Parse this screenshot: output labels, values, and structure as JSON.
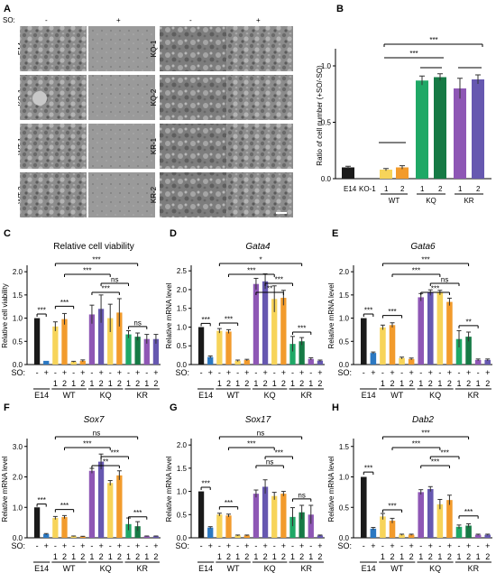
{
  "panel_letters": [
    "A",
    "B",
    "C",
    "D",
    "E",
    "F",
    "G",
    "H"
  ],
  "panel_a": {
    "so_label": "SO:",
    "minus": "-",
    "plus": "+",
    "left_rows": [
      "E14",
      "KO-1",
      "WT-1",
      "WT-2"
    ],
    "right_rows": [
      "KQ-1",
      "KQ-2",
      "KR-1",
      "KR-2"
    ]
  },
  "colors": {
    "black": "#1a1a1a",
    "blue": "#2b78c2",
    "yellow": "#f7d45a",
    "orange": "#f29b2c",
    "green1": "#1fa866",
    "green2": "#167a45",
    "purple1": "#8e57b5",
    "purple2": "#6658b0"
  },
  "chart_data": [
    {
      "panel": "B",
      "type": "bar",
      "ylabel": "Ratio of  cell number (+SO/-SO)",
      "yticks": [
        0.0,
        0.5,
        1.0
      ],
      "ylim": [
        0,
        1.12
      ],
      "categories": [
        "E14",
        "KO-1",
        "1",
        "2",
        "1",
        "2",
        "1",
        "2"
      ],
      "groups": [
        "WT",
        "KQ",
        "KR"
      ],
      "values": [
        0.1,
        0.0,
        0.08,
        0.1,
        0.87,
        0.9,
        0.8,
        0.88
      ],
      "errors": [
        0.01,
        0.0,
        0.01,
        0.015,
        0.04,
        0.03,
        0.09,
        0.04
      ],
      "significance": [
        "***",
        "***"
      ]
    },
    {
      "panel": "C",
      "type": "bar",
      "title": "Relative cell viability",
      "title_italic": false,
      "ylabel": "Relative cell viability",
      "yticks": [
        0.0,
        0.5,
        1.0,
        1.5,
        2.0
      ],
      "ylim": [
        0,
        2.1
      ],
      "values": [
        1.0,
        0.08,
        0.82,
        0.98,
        0.06,
        0.08,
        1.08,
        1.2,
        1.0,
        1.12,
        0.65,
        0.6,
        0.55,
        0.55
      ],
      "errors": [
        0.0,
        0.0,
        0.1,
        0.12,
        0.01,
        0.02,
        0.2,
        0.3,
        0.3,
        0.3,
        0.08,
        0.08,
        0.1,
        0.1
      ],
      "significance": [
        "***",
        "***",
        "***",
        "***",
        "ns",
        "***",
        "ns"
      ]
    },
    {
      "panel": "D",
      "type": "bar",
      "title": "Gata4",
      "title_italic": true,
      "ylabel": "Relative mRNA level",
      "yticks": [
        0.0,
        0.5,
        1.0,
        1.5,
        2.0,
        2.5
      ],
      "ylim": [
        0,
        2.6
      ],
      "values": [
        1.0,
        0.2,
        0.9,
        0.88,
        0.1,
        0.12,
        2.15,
        2.22,
        1.75,
        1.78,
        0.55,
        0.62,
        0.15,
        0.1
      ],
      "errors": [
        0.0,
        0.03,
        0.06,
        0.05,
        0.02,
        0.02,
        0.15,
        0.2,
        0.35,
        0.2,
        0.2,
        0.1,
        0.03,
        0.02
      ],
      "significance": [
        "***",
        "***",
        "*",
        "***",
        "***",
        "**",
        "***"
      ]
    },
    {
      "panel": "E",
      "type": "bar",
      "title": "Gata6",
      "title_italic": true,
      "ylabel": "Relative mRNA level",
      "yticks": [
        0.0,
        0.5,
        1.0,
        1.5,
        2.0
      ],
      "ylim": [
        0,
        2.1
      ],
      "values": [
        1.0,
        0.25,
        0.8,
        0.85,
        0.14,
        0.12,
        1.45,
        1.55,
        1.55,
        1.35,
        0.55,
        0.6,
        0.1,
        0.1
      ],
      "errors": [
        0.0,
        0.02,
        0.05,
        0.05,
        0.02,
        0.02,
        0.08,
        0.06,
        0.05,
        0.08,
        0.18,
        0.1,
        0.02,
        0.02
      ],
      "significance": [
        "***",
        "***",
        "***",
        "***",
        "ns",
        "***",
        "**"
      ]
    },
    {
      "panel": "F",
      "type": "bar",
      "title": "Sox7",
      "title_italic": true,
      "ylabel": "Relative mRNA level",
      "yticks": [
        0.0,
        1.0,
        2.0,
        3.0
      ],
      "ylim": [
        0,
        3.2
      ],
      "values": [
        1.0,
        0.12,
        0.65,
        0.68,
        0.05,
        0.04,
        2.2,
        2.5,
        1.8,
        2.05,
        0.45,
        0.38,
        0.05,
        0.05
      ],
      "errors": [
        0.0,
        0.02,
        0.05,
        0.05,
        0.01,
        0.01,
        0.08,
        0.25,
        0.08,
        0.15,
        0.2,
        0.15,
        0.01,
        0.01
      ],
      "significance": [
        "***",
        "***",
        "ns",
        "***",
        "***",
        "**",
        "***"
      ]
    },
    {
      "panel": "G",
      "type": "bar",
      "title": "Sox17",
      "title_italic": true,
      "ylabel": "Relative mRNA level",
      "yticks": [
        0.0,
        0.5,
        1.0,
        1.5,
        2.0
      ],
      "ylim": [
        0,
        2.1
      ],
      "values": [
        1.0,
        0.22,
        0.5,
        0.48,
        0.05,
        0.05,
        0.95,
        1.1,
        0.9,
        0.95,
        0.45,
        0.55,
        0.5,
        0.05
      ],
      "errors": [
        0.0,
        0.02,
        0.03,
        0.03,
        0.01,
        0.01,
        0.08,
        0.15,
        0.08,
        0.05,
        0.2,
        0.15,
        0.2,
        0.01
      ],
      "significance": [
        "***",
        "***",
        "ns",
        "***",
        "***",
        "ns",
        "ns"
      ]
    },
    {
      "panel": "H",
      "type": "bar",
      "title": "Dab2",
      "title_italic": true,
      "ylabel": "Relative mRNA level",
      "yticks": [
        0.0,
        0.5,
        1.0,
        1.5
      ],
      "ylim": [
        0,
        1.6
      ],
      "values": [
        1.0,
        0.15,
        0.35,
        0.28,
        0.05,
        0.05,
        0.75,
        0.8,
        0.55,
        0.62,
        0.18,
        0.2,
        0.05,
        0.05
      ],
      "errors": [
        0.0,
        0.02,
        0.05,
        0.04,
        0.01,
        0.01,
        0.04,
        0.04,
        0.08,
        0.08,
        0.03,
        0.03,
        0.01,
        0.01
      ],
      "significance": [
        "***",
        "***",
        "***",
        "***",
        "***",
        "***",
        "***"
      ]
    }
  ],
  "bar_axis": {
    "so_label": "SO:",
    "so_signs": [
      "-",
      "+",
      "-",
      "+",
      "-",
      "+",
      "-",
      "+",
      "-",
      "+",
      "-",
      "+",
      "-",
      "+"
    ],
    "replicates": [
      "",
      "",
      "1",
      "2",
      "1",
      "2",
      "1",
      "2",
      "1",
      "2",
      "1",
      "2",
      "1",
      "2"
    ],
    "groups": [
      "E14",
      "WT",
      "KQ",
      "KR"
    ]
  }
}
